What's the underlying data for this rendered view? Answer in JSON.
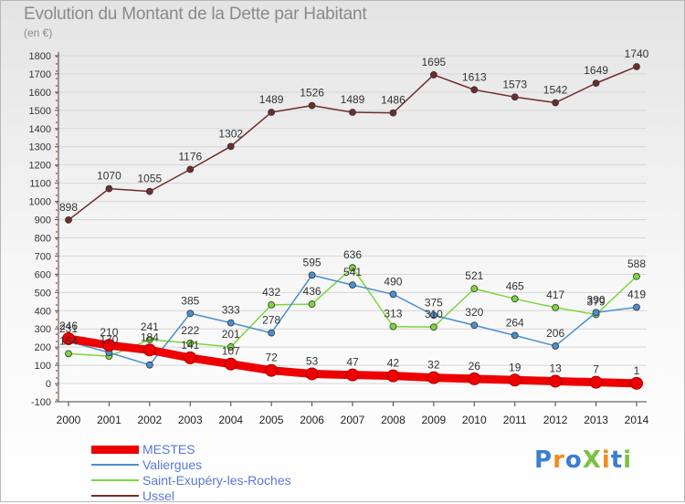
{
  "title": "Evolution du Montant de la Dette par Habitant",
  "subtitle": "(en €)",
  "logo": {
    "text": "ProXiti",
    "colors": [
      "#3a7fd0",
      "#f28c1e",
      "#3a7fd0",
      "#7ac143",
      "#f28c1e",
      "#3a7fd0",
      "#7ac143"
    ]
  },
  "chart_data": {
    "type": "line",
    "title": "Evolution du Montant de la Dette par Habitant",
    "ylabel": "(en €)",
    "xlabel": "",
    "x": [
      "2000",
      "2001",
      "2002",
      "2003",
      "2004",
      "2005",
      "2006",
      "2007",
      "2008",
      "2009",
      "2010",
      "2011",
      "2012",
      "2013",
      "2014"
    ],
    "ylim": [
      -100,
      1800
    ],
    "yticks": [
      "-100",
      "0",
      "100",
      "200",
      "300",
      "400",
      "500",
      "600",
      "700",
      "800",
      "900",
      "1000",
      "1100",
      "1200",
      "1300",
      "1400",
      "1500",
      "1600",
      "1700",
      "1800"
    ],
    "grid": true,
    "legend_position": "bottom",
    "series": [
      {
        "name": "MESTES",
        "color": "#ee0000",
        "values": [
          246,
          210,
          184,
          141,
          107,
          72,
          53,
          47,
          42,
          32,
          26,
          19,
          13,
          7,
          1
        ],
        "labels": [
          "246",
          "210",
          "184",
          "141",
          "107",
          "72",
          "53",
          "47",
          "42",
          "32",
          "26",
          "19",
          "13",
          "7",
          "1"
        ]
      },
      {
        "name": "Valiergues",
        "color": "#4a90d0",
        "values": [
          231,
          170,
          102,
          385,
          333,
          278,
          595,
          541,
          490,
          375,
          320,
          264,
          206,
          390,
          419
        ],
        "labels": [
          "231",
          "170",
          "",
          "385",
          "333",
          "278",
          "595",
          "541",
          "490",
          "375",
          "320",
          "264",
          "206",
          "390",
          "419"
        ]
      },
      {
        "name": "Saint-Exupéry-les-Roches",
        "color": "#7cd63c",
        "values": [
          164,
          150,
          241,
          222,
          201,
          432,
          436,
          636,
          313,
          310,
          521,
          465,
          417,
          379,
          588
        ],
        "labels": [
          "164",
          "",
          "241",
          "222",
          "201",
          "432",
          "436",
          "636",
          "313",
          "310",
          "521",
          "465",
          "417",
          "379",
          "588"
        ]
      },
      {
        "name": "Ussel",
        "color": "#702c2c",
        "values": [
          898,
          1070,
          1055,
          1176,
          1302,
          1489,
          1526,
          1489,
          1486,
          1695,
          1613,
          1573,
          1542,
          1649,
          1740
        ],
        "labels": [
          "898",
          "1070",
          "1055",
          "1176",
          "1302",
          "1489",
          "1526",
          "1489",
          "1486",
          "1695",
          "1613",
          "1573",
          "1542",
          "1649",
          "1740"
        ]
      }
    ]
  }
}
